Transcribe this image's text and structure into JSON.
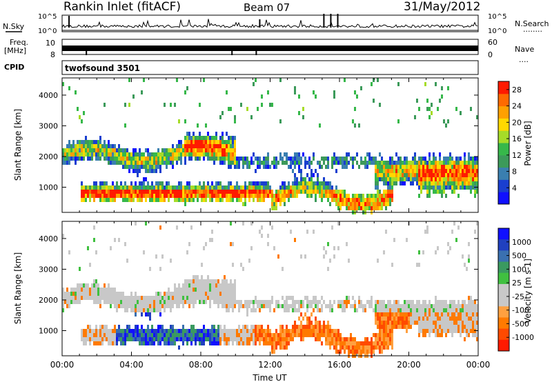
{
  "header": {
    "title": "Rankin Inlet (fitACF)",
    "beam": "Beam 07",
    "date": "31/May/2012"
  },
  "strip": {
    "nsky_label": "N.Sky",
    "nsearch_label": "N.Search",
    "nsearch_marker": "........",
    "left_ticks": [
      "10^5",
      "10^0"
    ],
    "right_ticks": [
      "10^5",
      "10^0"
    ],
    "freq_label_1": "Freq.",
    "freq_label_2": "[MHz]",
    "freq_ticks": [
      "10",
      "8"
    ],
    "nave_label": "Nave",
    "nave_marker": "....",
    "nave_ticks": [
      "60",
      "0"
    ],
    "cpid_label": "CPID",
    "cpid_value": "twofsound 3501"
  },
  "colors": {
    "power": [
      "#1010ff",
      "#1a3fd0",
      "#3a7fb0",
      "#3c9a5a",
      "#36b84a",
      "#a6dc28",
      "#ffd800",
      "#ffa000",
      "#ff6a00",
      "#ff1a00"
    ],
    "velocity": [
      "#1010ff",
      "#2040c0",
      "#3a70b0",
      "#3a9a60",
      "#40c040",
      "#c8c8c8",
      "#c8c8c8",
      "#ffa040",
      "#ff7a00",
      "#ff4a00",
      "#ff1a00"
    ]
  },
  "chart_data": [
    {
      "type": "heatmap",
      "name": "power",
      "ylabel": "Slant Range [km]",
      "xlabel": "",
      "x_ticks": [
        "00:00",
        "04:00",
        "08:00",
        "12:00",
        "16:00",
        "20:00",
        "00:00"
      ],
      "y_ticks": [
        1000,
        2000,
        3000,
        4000
      ],
      "x_range_hours": [
        0,
        24
      ],
      "y_range_km": [
        180,
        4560
      ],
      "colorbar": {
        "label": "Power [dB]",
        "ticks": [
          4,
          8,
          12,
          16,
          20,
          24,
          28
        ],
        "range": [
          0,
          30
        ]
      }
    },
    {
      "type": "heatmap",
      "name": "velocity",
      "ylabel": "Slant Range [km]",
      "xlabel": "Time UT",
      "x_ticks": [
        "00:00",
        "04:00",
        "08:00",
        "12:00",
        "16:00",
        "20:00",
        "00:00"
      ],
      "y_ticks": [
        1000,
        2000,
        3000,
        4000
      ],
      "x_range_hours": [
        0,
        24
      ],
      "y_range_km": [
        180,
        4560
      ],
      "colorbar": {
        "label": "Velocity [m s-1]",
        "ticks": [
          "1000",
          "500",
          "100",
          "25",
          "-25",
          "-100",
          "-500",
          "-1000"
        ]
      }
    }
  ]
}
